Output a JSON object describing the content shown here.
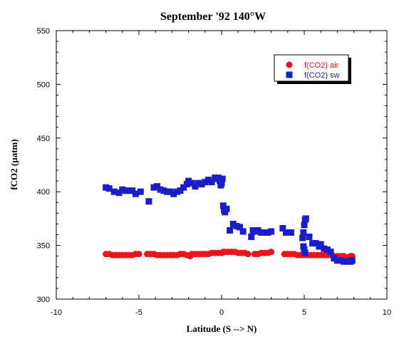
{
  "chart_data": {
    "type": "scatter",
    "title": "September '92 140°W",
    "xlabel": "Latitude (S --> N)",
    "ylabel": "fCO2 (µatm)",
    "xlim": [
      -10,
      10
    ],
    "ylim": [
      300,
      550
    ],
    "x_ticks": [
      "-10",
      "-5",
      "0",
      "5",
      "10"
    ],
    "y_ticks": [
      "300",
      "350",
      "400",
      "450",
      "500",
      "550"
    ],
    "grid": false,
    "legend_position": "top-right",
    "series": [
      {
        "name": "f(CO2) air",
        "marker": "circle",
        "color": "#e8161b",
        "points": [
          [
            -7.0,
            342
          ],
          [
            -6.8,
            342
          ],
          [
            -6.6,
            341
          ],
          [
            -6.4,
            341
          ],
          [
            -6.2,
            341
          ],
          [
            -6.0,
            341
          ],
          [
            -5.8,
            341
          ],
          [
            -5.6,
            341
          ],
          [
            -5.4,
            341
          ],
          [
            -5.2,
            342
          ],
          [
            -5.0,
            342
          ],
          [
            -4.5,
            342
          ],
          [
            -4.3,
            342
          ],
          [
            -4.1,
            342
          ],
          [
            -3.9,
            341
          ],
          [
            -3.7,
            341
          ],
          [
            -3.5,
            341
          ],
          [
            -3.3,
            341
          ],
          [
            -3.1,
            341
          ],
          [
            -2.9,
            341
          ],
          [
            -2.7,
            341
          ],
          [
            -2.5,
            342
          ],
          [
            -2.3,
            342
          ],
          [
            -2.1,
            341
          ],
          [
            -1.9,
            340
          ],
          [
            -1.8,
            342
          ],
          [
            -1.6,
            342
          ],
          [
            -1.4,
            342
          ],
          [
            -1.2,
            342
          ],
          [
            -1.0,
            342
          ],
          [
            -0.8,
            342
          ],
          [
            -0.6,
            343
          ],
          [
            -0.4,
            343
          ],
          [
            -0.2,
            343
          ],
          [
            0.0,
            343
          ],
          [
            0.1,
            344
          ],
          [
            0.2,
            344
          ],
          [
            0.4,
            344
          ],
          [
            0.6,
            344
          ],
          [
            0.8,
            344
          ],
          [
            1.0,
            343
          ],
          [
            1.2,
            343
          ],
          [
            1.4,
            343
          ],
          [
            1.6,
            342
          ],
          [
            2.0,
            342
          ],
          [
            2.2,
            342
          ],
          [
            2.4,
            343
          ],
          [
            2.6,
            343
          ],
          [
            2.8,
            343
          ],
          [
            3.0,
            344
          ],
          [
            3.8,
            342
          ],
          [
            4.0,
            342
          ],
          [
            4.2,
            342
          ],
          [
            4.4,
            342
          ],
          [
            4.6,
            341
          ],
          [
            4.8,
            341
          ],
          [
            5.0,
            341
          ],
          [
            5.2,
            341
          ],
          [
            5.4,
            341
          ],
          [
            5.6,
            341
          ],
          [
            5.8,
            341
          ],
          [
            6.0,
            341
          ],
          [
            6.2,
            341
          ],
          [
            6.4,
            341
          ],
          [
            6.6,
            341
          ],
          [
            6.8,
            340
          ],
          [
            7.0,
            340
          ],
          [
            7.2,
            340
          ],
          [
            7.4,
            340
          ],
          [
            7.6,
            339
          ],
          [
            7.8,
            340
          ],
          [
            7.9,
            340
          ]
        ]
      },
      {
        "name": "f(CO2) sw",
        "marker": "square",
        "color": "#1b1ec8",
        "points": [
          [
            -7.0,
            404
          ],
          [
            -6.8,
            403
          ],
          [
            -6.5,
            400
          ],
          [
            -6.2,
            399
          ],
          [
            -6.0,
            402
          ],
          [
            -5.8,
            401
          ],
          [
            -5.6,
            401
          ],
          [
            -5.4,
            401
          ],
          [
            -5.2,
            398
          ],
          [
            -4.9,
            400
          ],
          [
            -4.4,
            391
          ],
          [
            -4.1,
            404
          ],
          [
            -3.9,
            405
          ],
          [
            -3.7,
            402
          ],
          [
            -3.5,
            401
          ],
          [
            -3.3,
            400
          ],
          [
            -3.1,
            400
          ],
          [
            -2.9,
            398
          ],
          [
            -2.7,
            400
          ],
          [
            -2.5,
            401
          ],
          [
            -2.3,
            404
          ],
          [
            -2.1,
            407
          ],
          [
            -2.0,
            410
          ],
          [
            -1.8,
            408
          ],
          [
            -1.6,
            405
          ],
          [
            -1.4,
            408
          ],
          [
            -1.2,
            407
          ],
          [
            -1.0,
            409
          ],
          [
            -0.8,
            411
          ],
          [
            -0.6,
            409
          ],
          [
            -0.4,
            413
          ],
          [
            -0.3,
            412
          ],
          [
            -0.2,
            413
          ],
          [
            -0.1,
            410
          ],
          [
            -0.05,
            406
          ],
          [
            0.0,
            408
          ],
          [
            0.05,
            412
          ],
          [
            0.1,
            387
          ],
          [
            0.15,
            383
          ],
          [
            0.2,
            381
          ],
          [
            0.3,
            384
          ],
          [
            0.5,
            364
          ],
          [
            0.7,
            370
          ],
          [
            0.9,
            368
          ],
          [
            1.1,
            367
          ],
          [
            1.3,
            363
          ],
          [
            1.8,
            358
          ],
          [
            1.9,
            364
          ],
          [
            2.0,
            363
          ],
          [
            2.2,
            364
          ],
          [
            2.4,
            362
          ],
          [
            2.6,
            362
          ],
          [
            2.8,
            362
          ],
          [
            3.0,
            363
          ],
          [
            3.7,
            366
          ],
          [
            3.9,
            362
          ],
          [
            4.2,
            362
          ],
          [
            4.9,
            357
          ],
          [
            4.95,
            362
          ],
          [
            5.0,
            369
          ],
          [
            5.05,
            374
          ],
          [
            5.1,
            375
          ],
          [
            4.95,
            349
          ],
          [
            5.0,
            346
          ],
          [
            5.05,
            343
          ],
          [
            5.3,
            358
          ],
          [
            5.5,
            352
          ],
          [
            5.7,
            352
          ],
          [
            5.9,
            349
          ],
          [
            6.0,
            351
          ],
          [
            6.2,
            347
          ],
          [
            6.4,
            346
          ],
          [
            6.6,
            344
          ],
          [
            6.8,
            338
          ],
          [
            7.0,
            336
          ],
          [
            7.2,
            336
          ],
          [
            7.4,
            335
          ],
          [
            7.6,
            335
          ],
          [
            7.8,
            335
          ],
          [
            7.9,
            336
          ]
        ]
      }
    ]
  }
}
